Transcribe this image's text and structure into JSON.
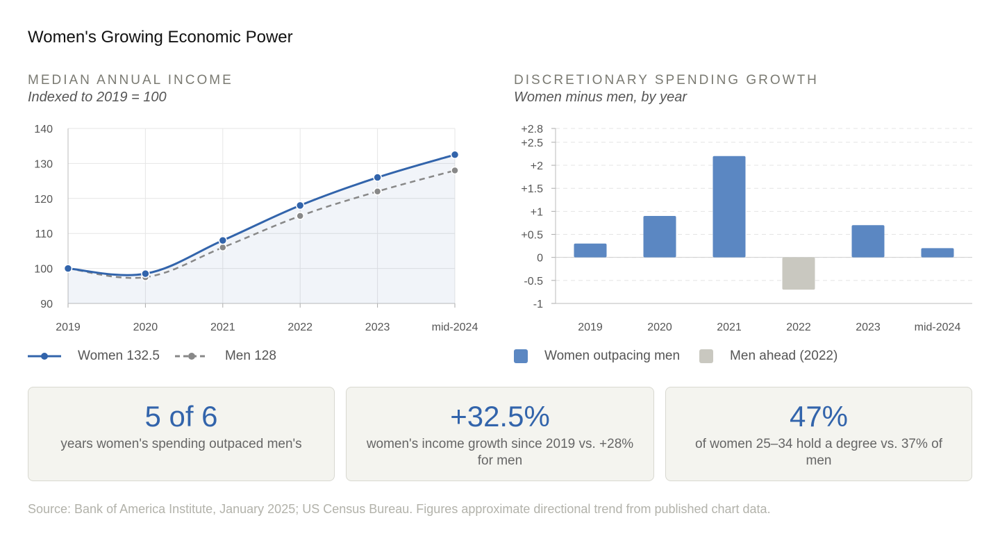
{
  "page": {
    "title": "Women's Growing Economic Power",
    "source": "Source: Bank of America Institute, January 2025; US Census Bureau. Figures approximate directional trend from published chart data."
  },
  "colors": {
    "women": "#3264ab",
    "men": "#888888",
    "bar_women": "#5b87c2",
    "bar_men": "#c9c8c0",
    "accent": "#3264ab"
  },
  "left_panel": {
    "heading": "MEDIAN ANNUAL INCOME",
    "subtitle": "Indexed to 2019 = 100",
    "legend": [
      {
        "label": "Women 132.5",
        "style": "solid-line-dot"
      },
      {
        "label": "Men 128",
        "style": "dashed-line-dot"
      }
    ]
  },
  "right_panel": {
    "heading": "DISCRETIONARY SPENDING GROWTH",
    "subtitle": "Women minus men, by year",
    "legend": [
      {
        "label": "Women outpacing men",
        "color": "#5b87c2"
      },
      {
        "label": "Men ahead (2022)",
        "color": "#c9c8c0"
      }
    ]
  },
  "chart_data": [
    {
      "type": "line",
      "categories": [
        "2019",
        "2020",
        "2021",
        "2022",
        "2023",
        "mid-2024"
      ],
      "series": [
        {
          "name": "Women",
          "values": [
            100,
            98.5,
            108,
            118,
            126,
            132.5
          ]
        },
        {
          "name": "Men",
          "values": [
            100,
            97.5,
            106,
            115,
            122,
            128
          ]
        }
      ],
      "ylim": [
        90,
        140
      ],
      "yticks": [
        "90",
        "100",
        "110",
        "120",
        "130",
        "140"
      ],
      "grid": true,
      "legend_position": "bottom-left"
    },
    {
      "type": "bar",
      "categories": [
        "2019",
        "2020",
        "2021",
        "2022",
        "2023",
        "mid-2024"
      ],
      "values": [
        0.3,
        0.9,
        2.2,
        -0.7,
        0.7,
        0.2
      ],
      "ylim": [
        -1,
        2.8
      ],
      "yticks": [
        {
          "value": -1,
          "label": "-1"
        },
        {
          "value": -0.5,
          "label": "-0.5"
        },
        {
          "value": 0,
          "label": "0"
        },
        {
          "value": 0.5,
          "label": "+0.5"
        },
        {
          "value": 1,
          "label": "+1"
        },
        {
          "value": 1.5,
          "label": "+1.5"
        },
        {
          "value": 2,
          "label": "+2"
        },
        {
          "value": 2.5,
          "label": "+2.5"
        },
        {
          "value": 2.8,
          "label": "+2.8"
        }
      ],
      "grid": "dashed",
      "legend_position": "bottom-left"
    }
  ],
  "stats": [
    {
      "value": "5 of 6",
      "desc": "years women's spending outpaced men's"
    },
    {
      "value": "+32.5%",
      "desc": "women's income growth since 2019 vs. +28% for men"
    },
    {
      "value": "47%",
      "desc": "of women 25–34 hold a degree vs. 37% of men"
    }
  ]
}
